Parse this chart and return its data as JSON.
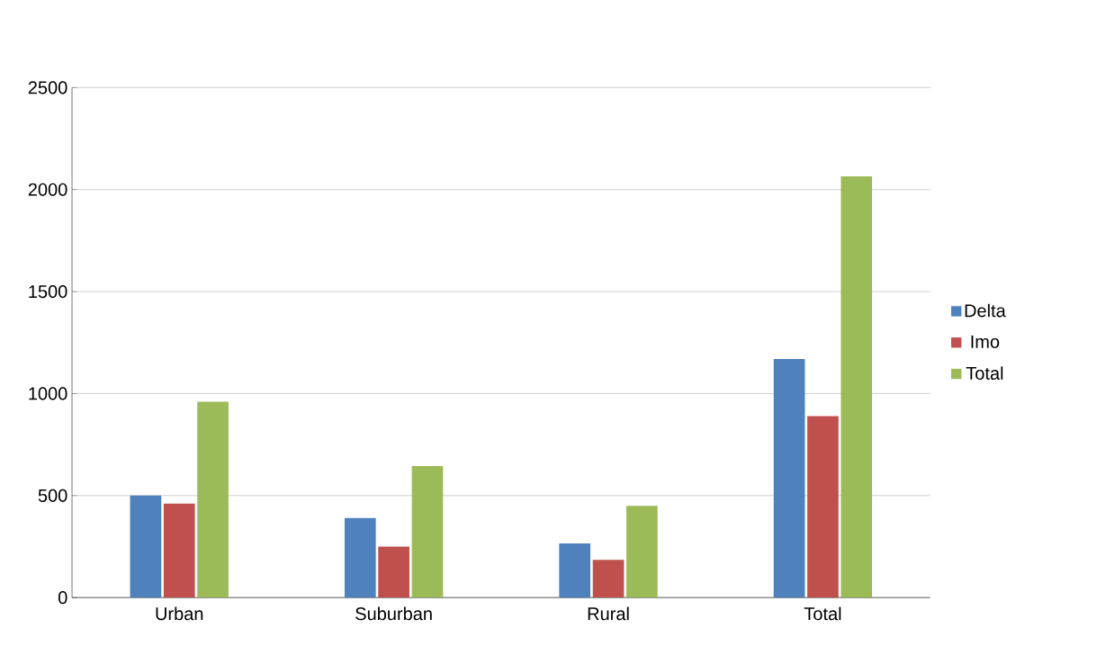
{
  "chart_data": {
    "type": "bar",
    "categories": [
      "Urban",
      "Suburban",
      "Rural",
      "Total"
    ],
    "series": [
      {
        "name": "Delta",
        "color": "#4f81bd",
        "values": [
          500,
          390,
          265,
          1170
        ]
      },
      {
        "name": "Imo",
        "color": "#c0504d",
        "values": [
          460,
          250,
          185,
          890
        ]
      },
      {
        "name": "Total",
        "color": "#9bbb59",
        "values": [
          960,
          645,
          450,
          2065
        ]
      }
    ],
    "ylim": [
      0,
      2500
    ],
    "yticks": [
      0,
      500,
      1000,
      1500,
      2000,
      2500
    ],
    "grid": "y",
    "legend": "right"
  }
}
